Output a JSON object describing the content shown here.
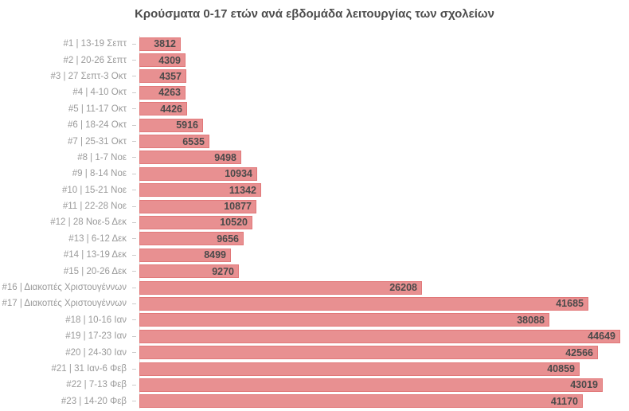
{
  "title": "Κρούσματα 0-17 ετών ανά εβδομάδα λειτουργίας των σχολείων",
  "colors": {
    "background": "#ffffff",
    "bar_fill": "#e89091",
    "bar_border": "#e17879",
    "value_label": "#4a4a4a",
    "category_label": "#9a9a9a",
    "title": "#4d4d4d",
    "tick": "#cccccc",
    "axis_line": "#e3e3e3"
  },
  "chart_data": {
    "type": "bar",
    "orientation": "horizontal",
    "title": "Κρούσματα 0-17 ετών ανά εβδομάδα λειτουργίας των σχολείων",
    "xlabel": "",
    "ylabel": "",
    "xlim": [
      0,
      45000
    ],
    "grid": false,
    "legend": false,
    "data_labels": "inside-end",
    "categories": [
      "#1 | 13-19 Σεπτ",
      "#2 | 20-26 Σεπτ",
      "#3 | 27 Σεπτ-3 Οκτ",
      "#4 | 4-10 Οκτ",
      "#5 | 11-17 Οκτ",
      "#6 | 18-24 Οκτ",
      "#7 | 25-31 Οκτ",
      "#8 | 1-7 Νοε",
      "#9 | 8-14 Νοε",
      "#10 | 15-21 Νοε",
      "#11 | 22-28 Νοε",
      "#12 | 28 Νοε-5 Δεκ",
      "#13 | 6-12 Δεκ",
      "#14 | 13-19 Δεκ",
      "#15 | 20-26 Δεκ",
      "#16 | Διακοπές Χριστουγέννων",
      "#17 | Διακοπές Χριστουγέννων",
      "#18 | 10-16 Ιαν",
      "#19 | 17-23 Ιαν",
      "#20 | 24-30 Ιαν",
      "#21 | 31 Ιαν-6 Φεβ",
      "#22 | 7-13 Φεβ",
      "#23 | 14-20 Φεβ"
    ],
    "values": [
      3812,
      4309,
      4357,
      4263,
      4426,
      5916,
      6535,
      9498,
      10934,
      11342,
      10877,
      10520,
      9656,
      8499,
      9270,
      26208,
      41685,
      38088,
      44649,
      42566,
      40859,
      43019,
      41170
    ]
  }
}
